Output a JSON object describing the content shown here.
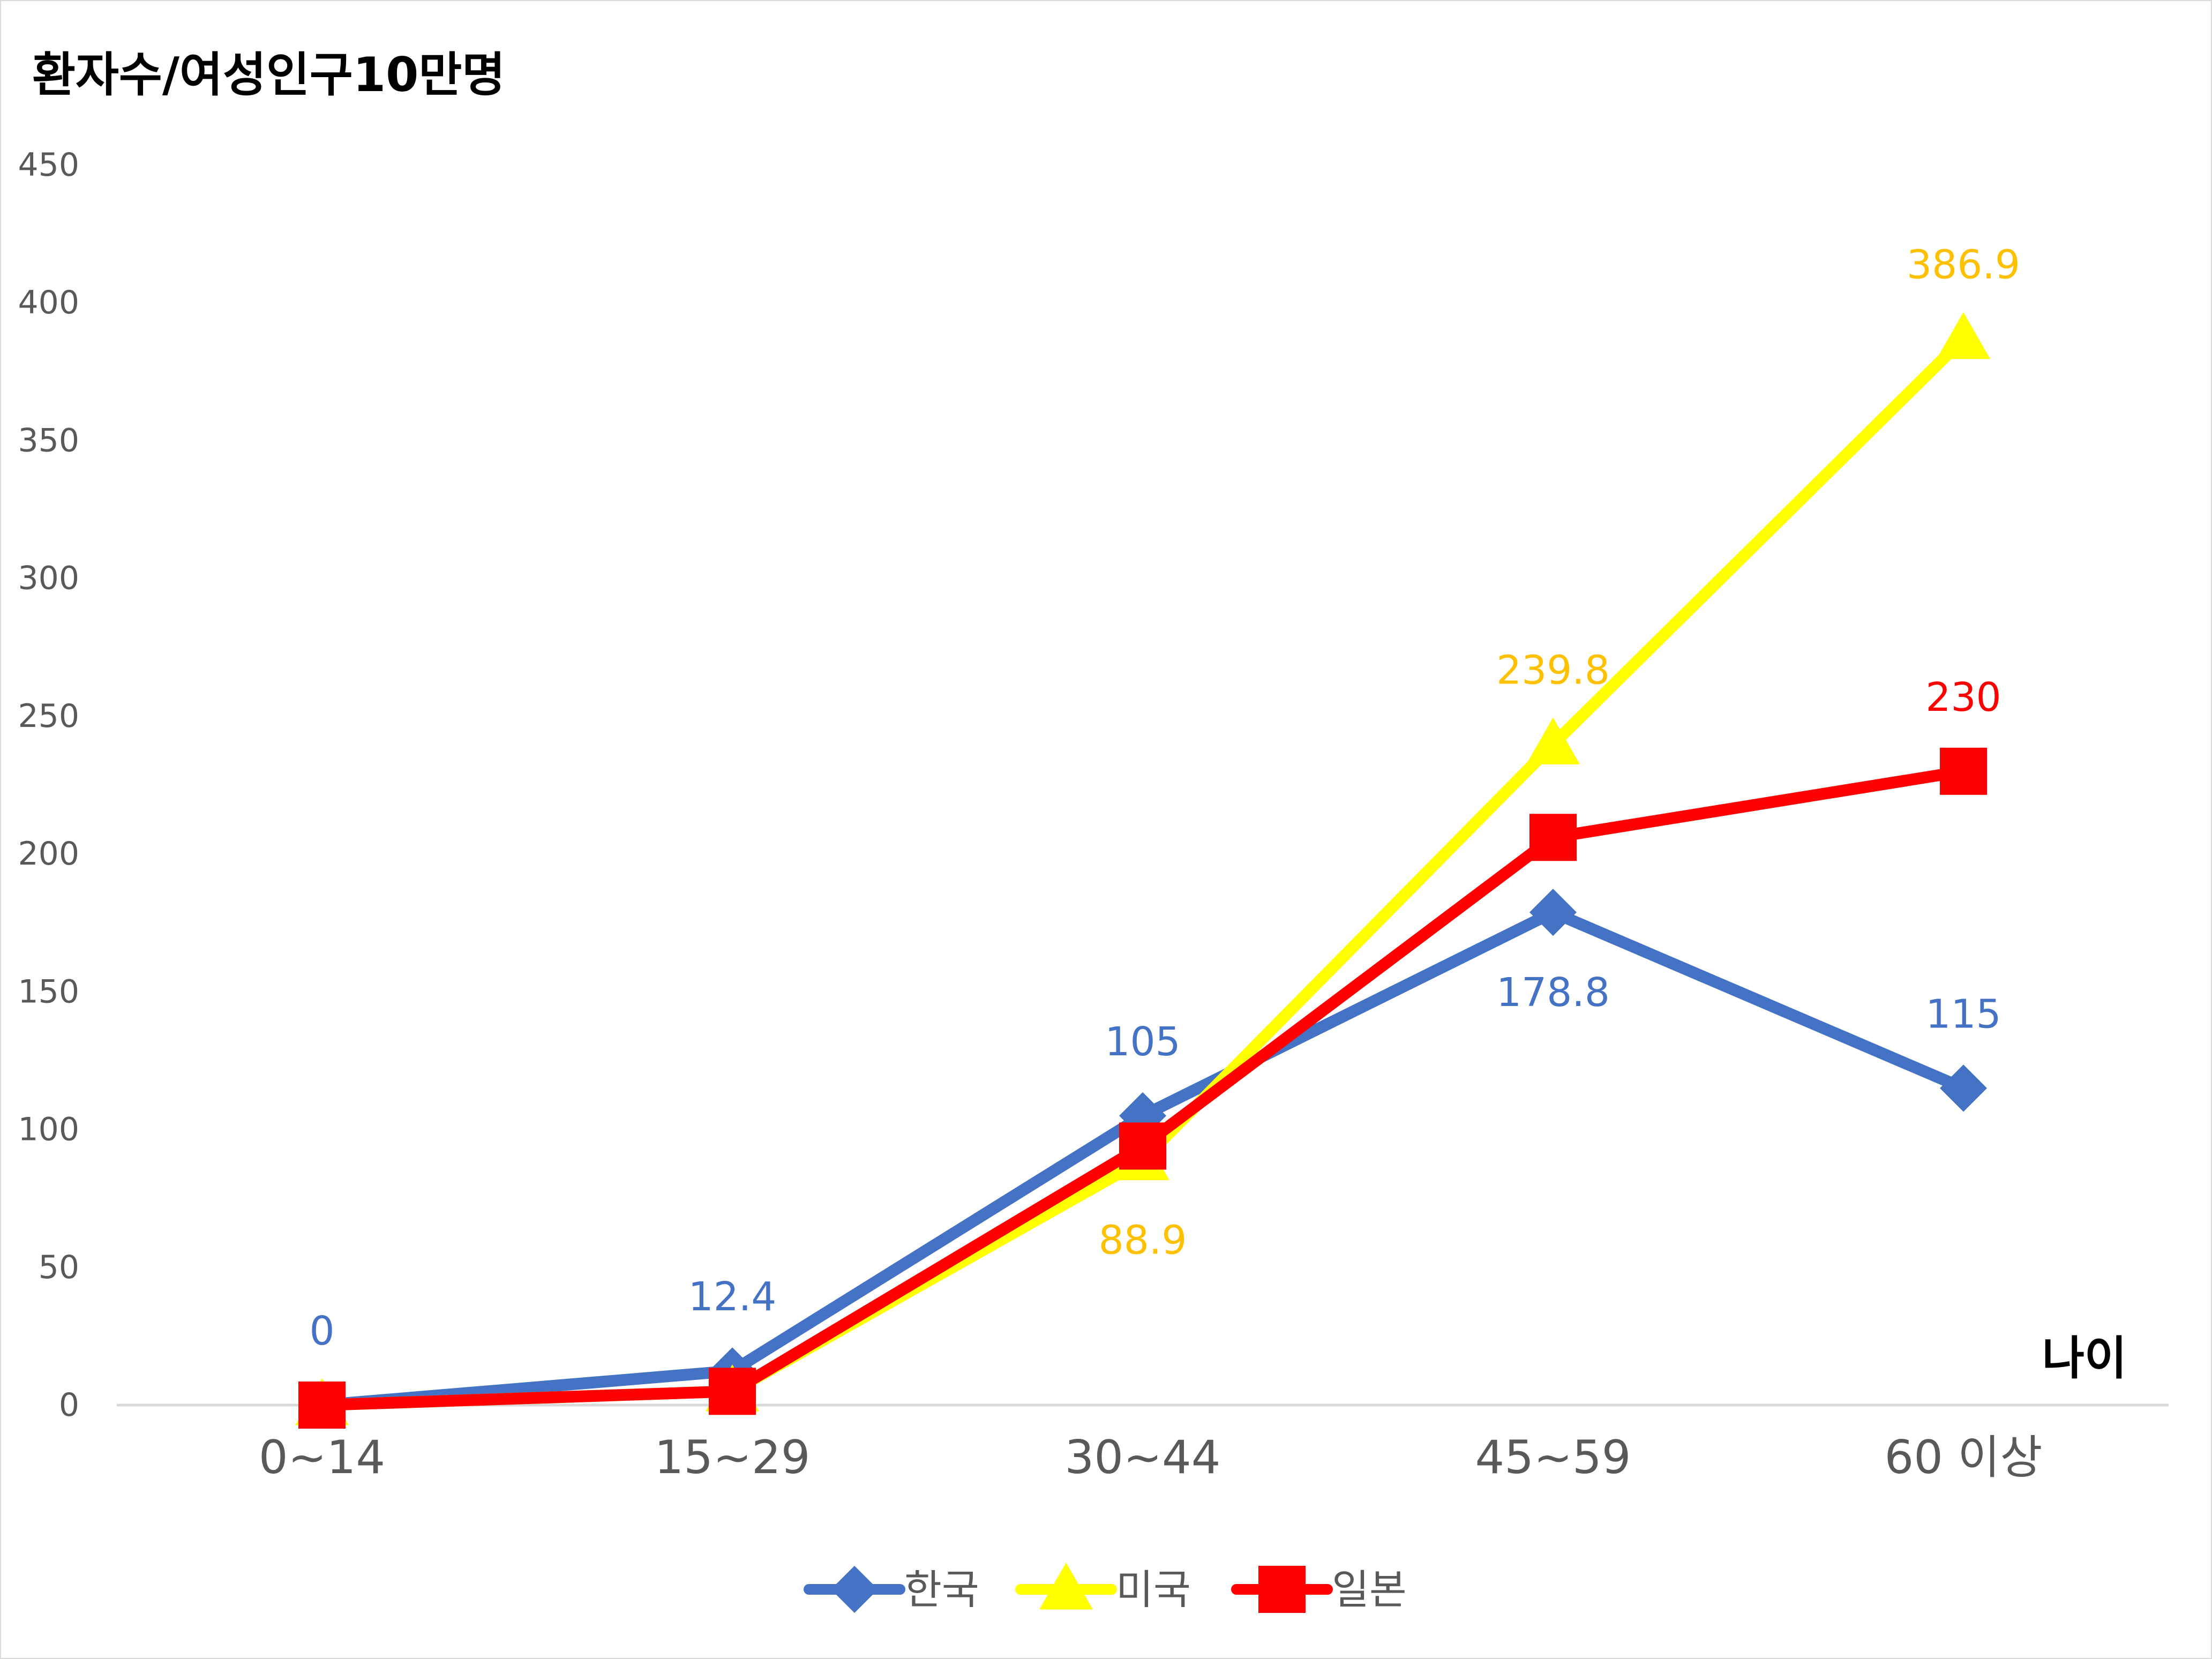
{
  "chart_data": {
    "type": "line",
    "ylabel": "환자수/여성인구10만명",
    "xlabel": "나이",
    "categories": [
      "0~14",
      "15~29",
      "30~44",
      "45~59",
      "60 이상"
    ],
    "ylim": [
      0,
      450
    ],
    "yticks": [
      0,
      50,
      100,
      150,
      200,
      250,
      300,
      350,
      400,
      450
    ],
    "grid": false,
    "legend_position": "bottom",
    "series": [
      {
        "name": "한국",
        "color": "#4472c4",
        "label_color": "#4472c4",
        "marker": "diamond",
        "values": [
          0,
          12.4,
          105,
          178.8,
          115
        ],
        "labels": [
          "0",
          "12.4",
          "105",
          "178.8",
          "115"
        ],
        "label_positions": [
          "above",
          "above",
          "above",
          "below",
          "above"
        ]
      },
      {
        "name": "미국",
        "color": "#ffff00",
        "label_color": "#ffc000",
        "marker": "triangle",
        "values": [
          0,
          5,
          88.9,
          239.8,
          386.9
        ],
        "labels": [
          "",
          "",
          "88.9",
          "239.8",
          "386.9"
        ],
        "label_positions": [
          "none",
          "none",
          "below",
          "above",
          "above"
        ]
      },
      {
        "name": "일본",
        "color": "#ff0000",
        "label_color": "#ff0000",
        "marker": "square",
        "values": [
          0,
          5,
          94,
          206,
          230
        ],
        "labels": [
          "",
          "",
          "",
          "",
          "230"
        ],
        "label_positions": [
          "none",
          "none",
          "none",
          "none",
          "above"
        ]
      }
    ]
  }
}
